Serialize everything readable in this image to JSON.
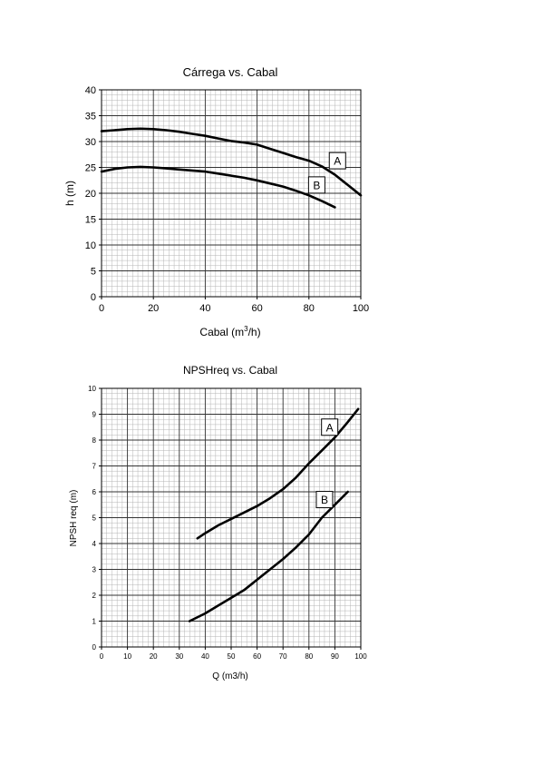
{
  "chart_data": [
    {
      "type": "line",
      "title": "Cárrega vs. Cabal",
      "xlabel": "Cabal (m3/h)",
      "ylabel": "h (m)",
      "xlim": [
        0,
        100
      ],
      "ylim": [
        0,
        40
      ],
      "xticks": [
        0,
        20,
        40,
        60,
        80,
        100
      ],
      "yticks": [
        0,
        5,
        10,
        15,
        20,
        25,
        30,
        35,
        40
      ],
      "grid": true,
      "series": [
        {
          "name": "A",
          "x": [
            0,
            5,
            10,
            15,
            20,
            25,
            30,
            35,
            40,
            45,
            50,
            55,
            60,
            65,
            70,
            75,
            80,
            85,
            90,
            95,
            100
          ],
          "y": [
            32.0,
            32.2,
            32.4,
            32.5,
            32.4,
            32.2,
            31.9,
            31.5,
            31.1,
            30.6,
            30.1,
            29.8,
            29.4,
            28.6,
            27.8,
            27.0,
            26.3,
            25.2,
            23.6,
            21.6,
            19.6
          ],
          "label_pos": [
            91,
            26.3
          ]
        },
        {
          "name": "B",
          "x": [
            0,
            5,
            10,
            15,
            20,
            25,
            30,
            35,
            40,
            45,
            50,
            55,
            60,
            65,
            70,
            75,
            80,
            85,
            90
          ],
          "y": [
            24.2,
            24.7,
            25.0,
            25.1,
            25.0,
            24.8,
            24.6,
            24.4,
            24.2,
            23.8,
            23.4,
            23.0,
            22.5,
            21.9,
            21.3,
            20.5,
            19.6,
            18.5,
            17.3
          ],
          "label_pos": [
            83,
            21.6
          ]
        }
      ]
    },
    {
      "type": "line",
      "title": "NPSHreq vs. Cabal",
      "xlabel": "Q (m3/h)",
      "ylabel": "NPSH req (m)",
      "xlim": [
        0,
        100
      ],
      "ylim": [
        0,
        10
      ],
      "xticks": [
        0,
        10,
        20,
        30,
        40,
        50,
        60,
        70,
        80,
        90,
        100
      ],
      "yticks": [
        0,
        1,
        2,
        3,
        4,
        5,
        6,
        7,
        8,
        9,
        10
      ],
      "grid": true,
      "series": [
        {
          "name": "A",
          "x": [
            37,
            40,
            45,
            50,
            55,
            60,
            65,
            70,
            75,
            80,
            85,
            90,
            95,
            99
          ],
          "y": [
            4.2,
            4.4,
            4.7,
            4.95,
            5.2,
            5.45,
            5.75,
            6.1,
            6.55,
            7.1,
            7.6,
            8.1,
            8.7,
            9.2
          ],
          "label_pos": [
            88,
            8.5
          ]
        },
        {
          "name": "B",
          "x": [
            34,
            40,
            45,
            50,
            55,
            60,
            65,
            70,
            75,
            80,
            85,
            90,
            95
          ],
          "y": [
            1.0,
            1.3,
            1.6,
            1.9,
            2.2,
            2.6,
            3.0,
            3.4,
            3.85,
            4.35,
            5.0,
            5.5,
            6.0
          ],
          "label_pos": [
            86,
            5.7
          ]
        }
      ]
    }
  ]
}
